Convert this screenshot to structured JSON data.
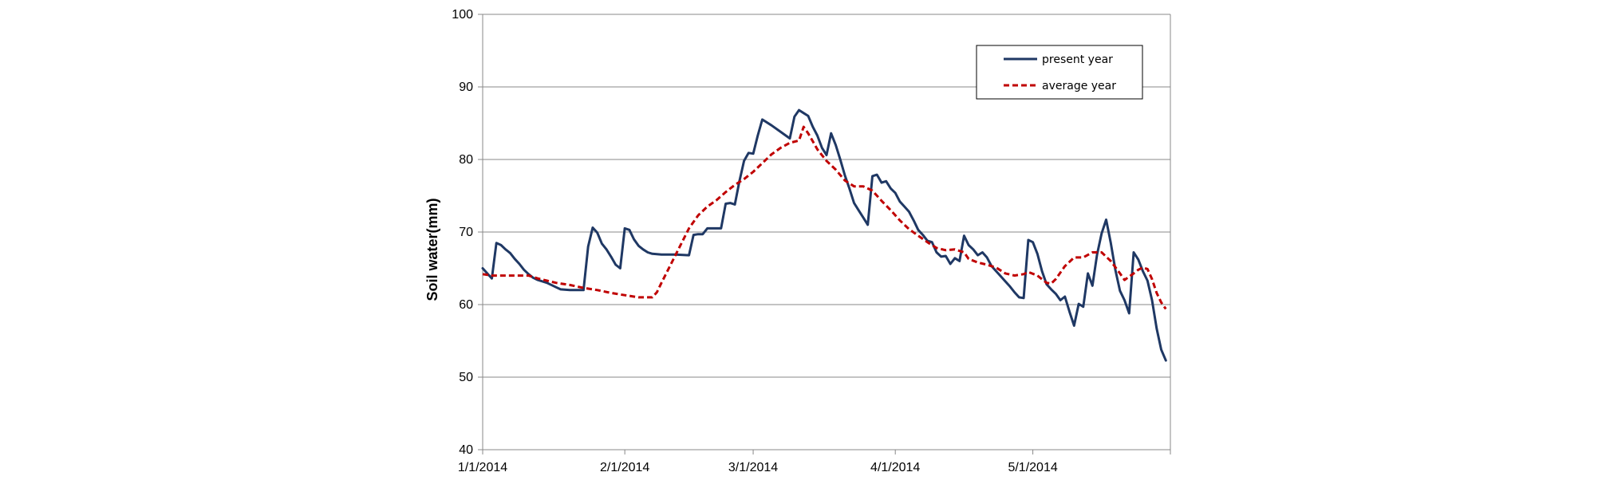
{
  "chart_data": {
    "type": "line",
    "title": "",
    "xlabel": "",
    "ylabel": "Soil water(mm)",
    "ylim": [
      40,
      100
    ],
    "yticks": [
      40,
      50,
      60,
      70,
      80,
      90,
      100
    ],
    "xlim": [
      "1/1/2014",
      "5/31/2014"
    ],
    "xticks": [
      "1/1/2014",
      "2/1/2014",
      "3/1/2014",
      "4/1/2014",
      "5/1/2014"
    ],
    "grid": "horizontal",
    "legend_position": "top-right",
    "colors": {
      "present": "#1f3864",
      "average": "#c00000"
    },
    "series": [
      {
        "name": "present year",
        "style": "solid",
        "points": [
          [
            "1/1/2014",
            65.0
          ],
          [
            "1/3/2014",
            63.6
          ],
          [
            "1/4/2014",
            68.5
          ],
          [
            "1/5/2014",
            68.2
          ],
          [
            "1/6/2014",
            67.6
          ],
          [
            "1/7/2014",
            67.1
          ],
          [
            "1/8/2014",
            66.3
          ],
          [
            "1/9/2014",
            65.6
          ],
          [
            "1/10/2014",
            64.8
          ],
          [
            "1/11/2014",
            64.2
          ],
          [
            "1/12/2014",
            63.7
          ],
          [
            "1/13/2014",
            63.4
          ],
          [
            "1/15/2014",
            63.0
          ],
          [
            "1/17/2014",
            62.4
          ],
          [
            "1/18/2014",
            62.1
          ],
          [
            "1/20/2014",
            62.0
          ],
          [
            "1/23/2014",
            62.0
          ],
          [
            "1/24/2014",
            68.0
          ],
          [
            "1/25/2014",
            70.6
          ],
          [
            "1/26/2014",
            69.9
          ],
          [
            "1/27/2014",
            68.4
          ],
          [
            "1/28/2014",
            67.6
          ],
          [
            "1/29/2014",
            66.6
          ],
          [
            "1/30/2014",
            65.5
          ],
          [
            "1/31/2014",
            65.0
          ],
          [
            "2/1/2014",
            70.5
          ],
          [
            "2/2/2014",
            70.3
          ],
          [
            "2/3/2014",
            69.0
          ],
          [
            "2/4/2014",
            68.1
          ],
          [
            "2/5/2014",
            67.6
          ],
          [
            "2/6/2014",
            67.2
          ],
          [
            "2/7/2014",
            67.0
          ],
          [
            "2/9/2014",
            66.9
          ],
          [
            "2/12/2014",
            66.9
          ],
          [
            "2/15/2014",
            66.8
          ],
          [
            "2/16/2014",
            69.6
          ],
          [
            "2/17/2014",
            69.7
          ],
          [
            "2/18/2014",
            69.7
          ],
          [
            "2/19/2014",
            70.5
          ],
          [
            "2/22/2014",
            70.5
          ],
          [
            "2/23/2014",
            73.9
          ],
          [
            "2/24/2014",
            74.0
          ],
          [
            "2/25/2014",
            73.8
          ],
          [
            "2/26/2014",
            77.0
          ],
          [
            "2/27/2014",
            79.8
          ],
          [
            "2/28/2014",
            80.9
          ],
          [
            "3/1/2014",
            80.8
          ],
          [
            "3/2/2014",
            83.3
          ],
          [
            "3/3/2014",
            85.5
          ],
          [
            "3/5/2014",
            84.7
          ],
          [
            "3/7/2014",
            83.8
          ],
          [
            "3/9/2014",
            82.9
          ],
          [
            "3/10/2014",
            85.9
          ],
          [
            "3/11/2014",
            86.8
          ],
          [
            "3/12/2014",
            86.4
          ],
          [
            "3/13/2014",
            86.0
          ],
          [
            "3/14/2014",
            84.5
          ],
          [
            "3/15/2014",
            83.3
          ],
          [
            "3/16/2014",
            81.6
          ],
          [
            "3/17/2014",
            80.6
          ],
          [
            "3/18/2014",
            83.6
          ],
          [
            "3/19/2014",
            82.0
          ],
          [
            "3/20/2014",
            80.0
          ],
          [
            "3/21/2014",
            77.8
          ],
          [
            "3/22/2014",
            76.0
          ],
          [
            "3/23/2014",
            74.0
          ],
          [
            "3/24/2014",
            73.0
          ],
          [
            "3/25/2014",
            72.0
          ],
          [
            "3/26/2014",
            71.0
          ],
          [
            "3/27/2014",
            77.7
          ],
          [
            "3/28/2014",
            77.9
          ],
          [
            "3/29/2014",
            76.8
          ],
          [
            "3/30/2014",
            77.0
          ],
          [
            "3/31/2014",
            76.0
          ],
          [
            "4/1/2014",
            75.4
          ],
          [
            "4/2/2014",
            74.2
          ],
          [
            "4/3/2014",
            73.5
          ],
          [
            "4/4/2014",
            72.8
          ],
          [
            "4/5/2014",
            71.6
          ],
          [
            "4/6/2014",
            70.3
          ],
          [
            "4/7/2014",
            69.6
          ],
          [
            "4/8/2014",
            68.8
          ],
          [
            "4/9/2014",
            68.6
          ],
          [
            "4/10/2014",
            67.2
          ],
          [
            "4/11/2014",
            66.6
          ],
          [
            "4/12/2014",
            66.7
          ],
          [
            "4/13/2014",
            65.6
          ],
          [
            "4/14/2014",
            66.4
          ],
          [
            "4/15/2014",
            66.0
          ],
          [
            "4/16/2014",
            69.5
          ],
          [
            "4/17/2014",
            68.2
          ],
          [
            "4/18/2014",
            67.6
          ],
          [
            "4/19/2014",
            66.8
          ],
          [
            "4/20/2014",
            67.2
          ],
          [
            "4/21/2014",
            66.5
          ],
          [
            "4/22/2014",
            65.3
          ],
          [
            "4/23/2014",
            64.6
          ],
          [
            "4/24/2014",
            63.9
          ],
          [
            "4/25/2014",
            63.2
          ],
          [
            "4/26/2014",
            62.5
          ],
          [
            "4/27/2014",
            61.7
          ],
          [
            "4/28/2014",
            61.0
          ],
          [
            "4/29/2014",
            60.9
          ],
          [
            "4/30/2014",
            68.9
          ],
          [
            "5/1/2014",
            68.6
          ],
          [
            "5/2/2014",
            67.0
          ],
          [
            "5/3/2014",
            64.6
          ],
          [
            "5/4/2014",
            62.8
          ],
          [
            "5/5/2014",
            62.1
          ],
          [
            "5/6/2014",
            61.5
          ],
          [
            "5/7/2014",
            60.6
          ],
          [
            "5/8/2014",
            61.1
          ],
          [
            "5/9/2014",
            59.0
          ],
          [
            "5/10/2014",
            57.1
          ],
          [
            "5/11/2014",
            60.1
          ],
          [
            "5/12/2014",
            59.7
          ],
          [
            "5/13/2014",
            64.3
          ],
          [
            "5/14/2014",
            62.6
          ],
          [
            "5/15/2014",
            66.9
          ],
          [
            "5/16/2014",
            69.8
          ],
          [
            "5/17/2014",
            71.7
          ],
          [
            "5/18/2014",
            68.5
          ],
          [
            "5/19/2014",
            64.8
          ],
          [
            "5/20/2014",
            61.9
          ],
          [
            "5/21/2014",
            60.6
          ],
          [
            "5/22/2014",
            58.8
          ],
          [
            "5/23/2014",
            67.2
          ],
          [
            "5/24/2014",
            66.2
          ],
          [
            "5/25/2014",
            64.6
          ],
          [
            "5/26/2014",
            63.3
          ],
          [
            "5/27/2014",
            60.6
          ],
          [
            "5/28/2014",
            56.7
          ],
          [
            "5/29/2014",
            53.8
          ],
          [
            "5/30/2014",
            52.3
          ]
        ]
      },
      {
        "name": "average year",
        "style": "dashed",
        "points": [
          [
            "1/1/2014",
            64.2
          ],
          [
            "1/3/2014",
            64.0
          ],
          [
            "1/5/2014",
            64.0
          ],
          [
            "1/8/2014",
            64.0
          ],
          [
            "1/11/2014",
            64.0
          ],
          [
            "1/13/2014",
            63.6
          ],
          [
            "1/15/2014",
            63.3
          ],
          [
            "1/17/2014",
            63.0
          ],
          [
            "1/20/2014",
            62.7
          ],
          [
            "1/23/2014",
            62.3
          ],
          [
            "1/26/2014",
            62.0
          ],
          [
            "1/29/2014",
            61.6
          ],
          [
            "2/1/2014",
            61.3
          ],
          [
            "2/4/2014",
            61.0
          ],
          [
            "2/7/2014",
            61.0
          ],
          [
            "2/8/2014",
            61.7
          ],
          [
            "2/9/2014",
            63.0
          ],
          [
            "2/11/2014",
            65.5
          ],
          [
            "2/13/2014",
            68.0
          ],
          [
            "2/15/2014",
            70.5
          ],
          [
            "2/17/2014",
            72.3
          ],
          [
            "2/19/2014",
            73.5
          ],
          [
            "2/21/2014",
            74.4
          ],
          [
            "2/23/2014",
            75.5
          ],
          [
            "2/25/2014",
            76.5
          ],
          [
            "2/27/2014",
            77.3
          ],
          [
            "3/1/2014",
            78.3
          ],
          [
            "3/3/2014",
            79.5
          ],
          [
            "3/5/2014",
            80.7
          ],
          [
            "3/7/2014",
            81.6
          ],
          [
            "3/9/2014",
            82.3
          ],
          [
            "3/11/2014",
            82.6
          ],
          [
            "3/12/2014",
            84.5
          ],
          [
            "3/13/2014",
            83.6
          ],
          [
            "3/14/2014",
            82.5
          ],
          [
            "3/15/2014",
            81.4
          ],
          [
            "3/17/2014",
            79.8
          ],
          [
            "3/19/2014",
            78.6
          ],
          [
            "3/21/2014",
            77.1
          ],
          [
            "3/23/2014",
            76.3
          ],
          [
            "3/25/2014",
            76.3
          ],
          [
            "3/27/2014",
            75.7
          ],
          [
            "3/29/2014",
            74.3
          ],
          [
            "3/31/2014",
            73.0
          ],
          [
            "4/2/2014",
            71.6
          ],
          [
            "4/4/2014",
            70.4
          ],
          [
            "4/6/2014",
            69.5
          ],
          [
            "4/8/2014",
            68.6
          ],
          [
            "4/10/2014",
            67.8
          ],
          [
            "4/12/2014",
            67.5
          ],
          [
            "4/14/2014",
            67.6
          ],
          [
            "4/16/2014",
            67.2
          ],
          [
            "4/17/2014",
            66.3
          ],
          [
            "4/19/2014",
            65.8
          ],
          [
            "4/21/2014",
            65.5
          ],
          [
            "4/23/2014",
            65.1
          ],
          [
            "4/25/2014",
            64.3
          ],
          [
            "4/27/2014",
            64.0
          ],
          [
            "4/29/2014",
            64.2
          ],
          [
            "4/30/2014",
            64.5
          ],
          [
            "5/2/2014",
            64.0
          ],
          [
            "5/4/2014",
            63.0
          ],
          [
            "5/5/2014",
            62.9
          ],
          [
            "5/6/2014",
            63.5
          ],
          [
            "5/8/2014",
            65.3
          ],
          [
            "5/10/2014",
            66.5
          ],
          [
            "5/12/2014",
            66.5
          ],
          [
            "5/14/2014",
            67.2
          ],
          [
            "5/16/2014",
            67.2
          ],
          [
            "5/18/2014",
            66.0
          ],
          [
            "5/20/2014",
            64.3
          ],
          [
            "5/21/2014",
            63.4
          ],
          [
            "5/23/2014",
            64.3
          ],
          [
            "5/24/2014",
            64.8
          ],
          [
            "5/25/2014",
            65.1
          ],
          [
            "5/26/2014",
            64.9
          ],
          [
            "5/27/2014",
            63.5
          ],
          [
            "5/28/2014",
            61.6
          ],
          [
            "5/29/2014",
            60.3
          ],
          [
            "5/30/2014",
            59.4
          ]
        ]
      }
    ]
  }
}
